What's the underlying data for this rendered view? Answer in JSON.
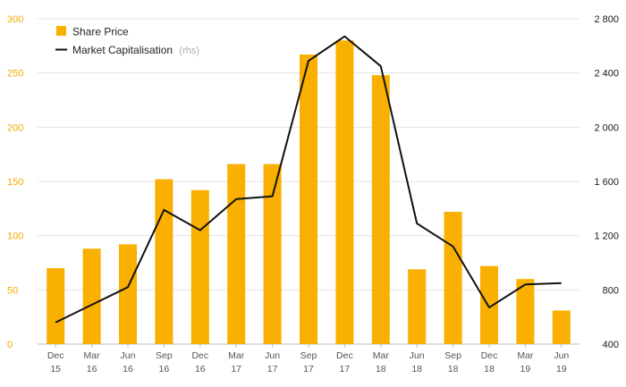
{
  "colors": {
    "bar": "#f9b000",
    "line": "#111111",
    "left_axis_text": "#f2a900",
    "right_axis_text": "#1a1a1a",
    "grid": "#e3e3e3"
  },
  "chart_data": {
    "type": "bar",
    "categories": [
      [
        "Dec",
        "15"
      ],
      [
        "Mar",
        "16"
      ],
      [
        "Jun",
        "16"
      ],
      [
        "Sep",
        "16"
      ],
      [
        "Dec",
        "16"
      ],
      [
        "Mar",
        "17"
      ],
      [
        "Jun",
        "17"
      ],
      [
        "Sep",
        "17"
      ],
      [
        "Dec",
        "17"
      ],
      [
        "Mar",
        "18"
      ],
      [
        "Jun",
        "18"
      ],
      [
        "Sep",
        "18"
      ],
      [
        "Dec",
        "18"
      ],
      [
        "Mar",
        "19"
      ],
      [
        "Jun",
        "19"
      ]
    ],
    "series": [
      {
        "name": "Share Price",
        "type": "bar",
        "axis": "left",
        "values": [
          70,
          88,
          92,
          152,
          142,
          166,
          166,
          267,
          280,
          248,
          69,
          122,
          72,
          60,
          31
        ]
      },
      {
        "name": "Market Capitalisation",
        "name_suffix": "(rhs)",
        "type": "line",
        "axis": "right",
        "values": [
          560,
          690,
          820,
          1390,
          1240,
          1470,
          1490,
          2490,
          2670,
          2450,
          1290,
          1120,
          670,
          840,
          850
        ]
      }
    ],
    "y_left": {
      "ylim": [
        0,
        300
      ],
      "ticks": [
        "0",
        "50",
        "100",
        "150",
        "200",
        "250",
        "300"
      ]
    },
    "y_right": {
      "ylim": [
        400,
        2800
      ],
      "ticks": [
        "400",
        "800",
        "1 200",
        "1 600",
        "2 000",
        "2 400",
        "2 800"
      ]
    },
    "grid": true,
    "legend_position": "top-left"
  }
}
